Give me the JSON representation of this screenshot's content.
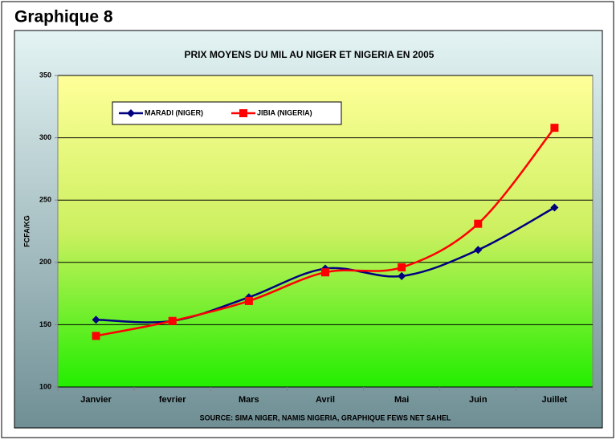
{
  "heading": "Graphique 8",
  "chart_data": {
    "type": "line",
    "title": "PRIX MOYENS DU MIL AU NIGER ET NIGERIA EN 2005",
    "y_label": "FCFA/KG",
    "source": "SOURCE: SIMA NIGER, NAMIS NIGERIA, GRAPHIQUE FEWS NET SAHEL",
    "categories": [
      "Janvier",
      "fevrier",
      "Mars",
      "Avril",
      "Mai",
      "Juin",
      "Juillet"
    ],
    "series": [
      {
        "name": "MARADI (NIGER)",
        "color": "#000080",
        "marker": "diamond",
        "values": [
          154,
          153,
          172,
          195,
          189,
          210,
          244
        ]
      },
      {
        "name": "JIBIA (NIGERIA)",
        "color": "#ff0000",
        "marker": "square",
        "values": [
          141,
          153,
          169,
          192,
          196,
          231,
          308
        ]
      }
    ],
    "ylim": [
      100,
      350
    ],
    "yticks": [
      100,
      150,
      200,
      250,
      300,
      350
    ],
    "grid": true,
    "smooth": true
  }
}
